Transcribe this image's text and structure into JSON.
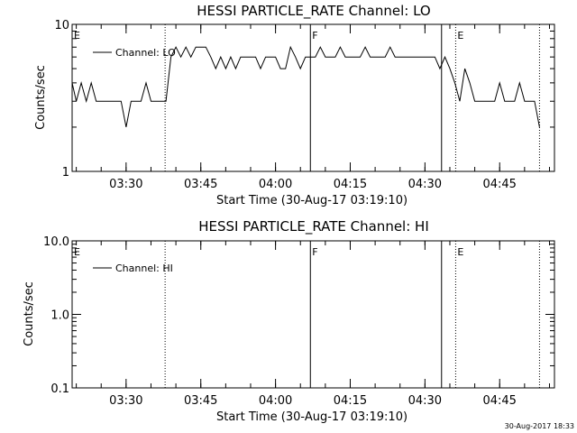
{
  "chart_data": [
    {
      "type": "line",
      "title": "HESSI PARTICLE_RATE Channel: LO",
      "xlabel": "Start Time (30-Aug-17 03:19:10)",
      "ylabel": "Counts/sec",
      "yscale": "log",
      "ylim": [
        1,
        10
      ],
      "ytick_labels": [
        "1",
        "10"
      ],
      "ytick_values": [
        1,
        10
      ],
      "xlim": [
        "03:19:10",
        "04:56:00"
      ],
      "xtick_labels": [
        "03:30",
        "03:45",
        "04:00",
        "04:15",
        "04:30",
        "04:45"
      ],
      "xtick_values": [
        "03:30",
        "03:45",
        "04:00",
        "04:15",
        "04:30",
        "04:45"
      ],
      "series": [
        {
          "name": "Channel: LO",
          "x": [
            "03:19:10",
            "03:20:00",
            "03:21:00",
            "03:22:00",
            "03:23:00",
            "03:24:00",
            "03:25:00",
            "03:26:00",
            "03:27:00",
            "03:28:00",
            "03:29:00",
            "03:30:00",
            "03:31:00",
            "03:32:00",
            "03:33:00",
            "03:34:00",
            "03:35:00",
            "03:36:00",
            "03:37:00",
            "03:38:00",
            "03:39:00",
            "03:40:00",
            "03:41:00",
            "03:42:00",
            "03:43:00",
            "03:44:00",
            "03:45:00",
            "03:46:00",
            "03:47:00",
            "03:48:00",
            "03:49:00",
            "03:50:00",
            "03:51:00",
            "03:52:00",
            "03:53:00",
            "03:54:00",
            "03:55:00",
            "03:56:00",
            "03:57:00",
            "03:58:00",
            "03:59:00",
            "04:00:00",
            "04:01:00",
            "04:02:00",
            "04:03:00",
            "04:04:00",
            "04:05:00",
            "04:06:00",
            "04:07:00",
            "04:08:00",
            "04:09:00",
            "04:10:00",
            "04:11:00",
            "04:12:00",
            "04:13:00",
            "04:14:00",
            "04:15:00",
            "04:16:00",
            "04:17:00",
            "04:18:00",
            "04:19:00",
            "04:20:00",
            "04:21:00",
            "04:22:00",
            "04:23:00",
            "04:24:00",
            "04:25:00",
            "04:26:00",
            "04:27:00",
            "04:28:00",
            "04:29:00",
            "04:30:00",
            "04:31:00",
            "04:32:00",
            "04:33:00",
            "04:34:00",
            "04:35:00",
            "04:36:00",
            "04:37:00",
            "04:38:00",
            "04:39:00",
            "04:40:00",
            "04:41:00",
            "04:42:00",
            "04:43:00",
            "04:44:00",
            "04:45:00",
            "04:46:00",
            "04:47:00",
            "04:48:00",
            "04:49:00",
            "04:50:00",
            "04:51:00",
            "04:52:00",
            "04:53:00"
          ],
          "y": [
            4,
            3,
            4,
            3,
            4,
            3,
            3,
            3,
            3,
            3,
            3,
            2,
            3,
            3,
            3,
            4,
            3,
            3,
            3,
            3,
            6,
            7,
            6,
            7,
            6,
            7,
            7,
            7,
            6,
            5,
            6,
            5,
            6,
            5,
            6,
            6,
            6,
            6,
            5,
            6,
            6,
            6,
            5,
            5,
            7,
            6,
            5,
            6,
            6,
            6,
            7,
            6,
            6,
            6,
            7,
            6,
            6,
            6,
            6,
            7,
            6,
            6,
            6,
            6,
            7,
            6,
            6,
            6,
            6,
            6,
            6,
            6,
            6,
            6,
            5,
            6,
            5,
            4,
            3,
            5,
            4,
            3,
            3,
            3,
            3,
            3,
            4,
            3,
            3,
            3,
            4,
            3,
            3,
            3,
            2
          ]
        }
      ],
      "markers": [
        {
          "label": "E",
          "time": "03:19:10",
          "style": "dotted"
        },
        {
          "label": "",
          "time": "03:37:50",
          "style": "dotted"
        },
        {
          "label": "F",
          "time": "04:07:00",
          "style": "solid"
        },
        {
          "label": "",
          "time": "04:33:20",
          "style": "solid"
        },
        {
          "label": "E",
          "time": "04:36:10",
          "style": "dotted"
        },
        {
          "label": "",
          "time": "04:53:00",
          "style": "dotted"
        }
      ]
    },
    {
      "type": "line",
      "title": "HESSI PARTICLE_RATE Channel: HI",
      "xlabel": "Start Time (30-Aug-17 03:19:10)",
      "ylabel": "Counts/sec",
      "yscale": "log",
      "ylim": [
        0.1,
        10.0
      ],
      "ytick_labels": [
        "0.1",
        "1.0",
        "10.0"
      ],
      "ytick_values": [
        0.1,
        1.0,
        10.0
      ],
      "xlim": [
        "03:19:10",
        "04:56:00"
      ],
      "xtick_labels": [
        "03:30",
        "03:45",
        "04:00",
        "04:15",
        "04:30",
        "04:45"
      ],
      "xtick_values": [
        "03:30",
        "03:45",
        "04:00",
        "04:15",
        "04:30",
        "04:45"
      ],
      "series": [
        {
          "name": "Channel: HI",
          "x": [],
          "y": []
        }
      ],
      "markers": [
        {
          "label": "E",
          "time": "03:19:10",
          "style": "dotted"
        },
        {
          "label": "",
          "time": "03:37:50",
          "style": "dotted"
        },
        {
          "label": "F",
          "time": "04:07:00",
          "style": "solid"
        },
        {
          "label": "",
          "time": "04:33:20",
          "style": "solid"
        },
        {
          "label": "E",
          "time": "04:36:10",
          "style": "dotted"
        },
        {
          "label": "",
          "time": "04:53:00",
          "style": "dotted"
        }
      ]
    }
  ],
  "footer": {
    "timestamp": "30-Aug-2017 18:33"
  }
}
